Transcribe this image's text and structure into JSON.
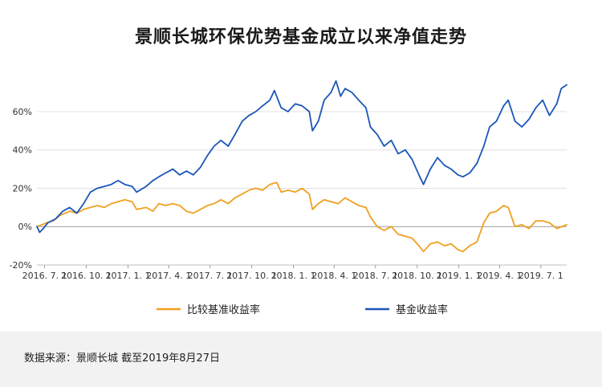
{
  "title": "景顺长城环保优势基金成立以来净值走势",
  "source": "数据来源：景顺长城  截至2019年8月27日",
  "colors": {
    "fund": "#1a56b8",
    "benchmark": "#f0a020",
    "grid": "#e0e0e0",
    "zero": "#9a9a9a"
  },
  "chart_data": {
    "type": "line",
    "title": "景顺长城环保优势基金成立以来净值走势",
    "xlabel": "",
    "ylabel": "",
    "x_range": [
      "2016-06-14",
      "2019-08-27"
    ],
    "ylim": [
      -20,
      78
    ],
    "y_ticks": [
      {
        "value": 60,
        "label": "60%"
      },
      {
        "value": 40,
        "label": "40%"
      },
      {
        "value": 20,
        "label": "20%"
      },
      {
        "value": 0,
        "label": "0%"
      },
      {
        "value": -20,
        "label": "-20%"
      }
    ],
    "x_ticks": [
      {
        "date": "2016-07-01",
        "label": "2016. 7. 1"
      },
      {
        "date": "2016-10-01",
        "label": "2016. 10. 1"
      },
      {
        "date": "2017-01-01",
        "label": "2017. 1. 1"
      },
      {
        "date": "2017-04-01",
        "label": "2017. 4. 1"
      },
      {
        "date": "2017-07-01",
        "label": "2017. 7. 1"
      },
      {
        "date": "2017-10-01",
        "label": "2017. 10. 1"
      },
      {
        "date": "2018-01-01",
        "label": "2018. 1. 1"
      },
      {
        "date": "2018-04-01",
        "label": "2018. 4. 1"
      },
      {
        "date": "2018-07-01",
        "label": "2018. 7. 1"
      },
      {
        "date": "2018-10-01",
        "label": "2018. 10. 1"
      },
      {
        "date": "2019-01-01",
        "label": "2019. 1. 1"
      },
      {
        "date": "2019-04-01",
        "label": "2019. 4. 1"
      },
      {
        "date": "2019-07-01",
        "label": "2019. 7. 1"
      }
    ],
    "grid": true,
    "legend_position": "bottom",
    "series": [
      {
        "name": "比较基准收益率",
        "color": "#f0a020",
        "points": [
          [
            "2016-06-14",
            0
          ],
          [
            "2016-06-25",
            1
          ],
          [
            "2016-07-05",
            2
          ],
          [
            "2016-07-20",
            3
          ],
          [
            "2016-08-05",
            6
          ],
          [
            "2016-08-25",
            8
          ],
          [
            "2016-09-10",
            7
          ],
          [
            "2016-09-25",
            9
          ],
          [
            "2016-10-10",
            10
          ],
          [
            "2016-10-25",
            11
          ],
          [
            "2016-11-10",
            10
          ],
          [
            "2016-11-25",
            12
          ],
          [
            "2016-12-10",
            13
          ],
          [
            "2016-12-25",
            14
          ],
          [
            "2017-01-10",
            13
          ],
          [
            "2017-01-20",
            9
          ],
          [
            "2017-02-10",
            10
          ],
          [
            "2017-02-25",
            8
          ],
          [
            "2017-03-10",
            12
          ],
          [
            "2017-03-25",
            11
          ],
          [
            "2017-04-10",
            12
          ],
          [
            "2017-04-25",
            11
          ],
          [
            "2017-05-10",
            8
          ],
          [
            "2017-05-25",
            7
          ],
          [
            "2017-06-10",
            9
          ],
          [
            "2017-06-25",
            11
          ],
          [
            "2017-07-10",
            12
          ],
          [
            "2017-07-25",
            14
          ],
          [
            "2017-08-10",
            12
          ],
          [
            "2017-08-25",
            15
          ],
          [
            "2017-09-10",
            17
          ],
          [
            "2017-09-25",
            19
          ],
          [
            "2017-10-10",
            20
          ],
          [
            "2017-10-25",
            19
          ],
          [
            "2017-11-10",
            22
          ],
          [
            "2017-11-25",
            23
          ],
          [
            "2017-12-05",
            18
          ],
          [
            "2017-12-20",
            19
          ],
          [
            "2018-01-05",
            18
          ],
          [
            "2018-01-20",
            20
          ],
          [
            "2018-02-05",
            17
          ],
          [
            "2018-02-12",
            9
          ],
          [
            "2018-02-25",
            12
          ],
          [
            "2018-03-10",
            14
          ],
          [
            "2018-03-25",
            13
          ],
          [
            "2018-04-10",
            12
          ],
          [
            "2018-04-25",
            15
          ],
          [
            "2018-05-10",
            13
          ],
          [
            "2018-05-25",
            11
          ],
          [
            "2018-06-10",
            10
          ],
          [
            "2018-06-20",
            5
          ],
          [
            "2018-07-05",
            0
          ],
          [
            "2018-07-20",
            -2
          ],
          [
            "2018-08-05",
            0
          ],
          [
            "2018-08-20",
            -4
          ],
          [
            "2018-09-05",
            -5
          ],
          [
            "2018-09-20",
            -6
          ],
          [
            "2018-10-05",
            -10
          ],
          [
            "2018-10-15",
            -13
          ],
          [
            "2018-10-30",
            -9
          ],
          [
            "2018-11-15",
            -8
          ],
          [
            "2018-11-30",
            -10
          ],
          [
            "2018-12-15",
            -9
          ],
          [
            "2018-12-30",
            -12
          ],
          [
            "2019-01-10",
            -13
          ],
          [
            "2019-01-25",
            -10
          ],
          [
            "2019-02-10",
            -8
          ],
          [
            "2019-02-25",
            2
          ],
          [
            "2019-03-10",
            7
          ],
          [
            "2019-03-25",
            8
          ],
          [
            "2019-04-10",
            11
          ],
          [
            "2019-04-20",
            10
          ],
          [
            "2019-05-05",
            0
          ],
          [
            "2019-05-20",
            1
          ],
          [
            "2019-06-05",
            -1
          ],
          [
            "2019-06-20",
            3
          ],
          [
            "2019-07-05",
            3
          ],
          [
            "2019-07-20",
            2
          ],
          [
            "2019-08-05",
            -1
          ],
          [
            "2019-08-27",
            1
          ]
        ]
      },
      {
        "name": "基金收益率",
        "color": "#1a56b8",
        "points": [
          [
            "2016-06-14",
            0
          ],
          [
            "2016-06-20",
            -3
          ],
          [
            "2016-06-28",
            -1
          ],
          [
            "2016-07-08",
            2
          ],
          [
            "2016-07-25",
            4
          ],
          [
            "2016-08-10",
            8
          ],
          [
            "2016-08-25",
            10
          ],
          [
            "2016-09-10",
            7
          ],
          [
            "2016-09-25",
            12
          ],
          [
            "2016-10-10",
            18
          ],
          [
            "2016-10-25",
            20
          ],
          [
            "2016-11-10",
            21
          ],
          [
            "2016-11-25",
            22
          ],
          [
            "2016-12-10",
            24
          ],
          [
            "2016-12-25",
            22
          ],
          [
            "2017-01-10",
            21
          ],
          [
            "2017-01-20",
            18
          ],
          [
            "2017-02-10",
            21
          ],
          [
            "2017-02-25",
            24
          ],
          [
            "2017-03-10",
            26
          ],
          [
            "2017-03-25",
            28
          ],
          [
            "2017-04-10",
            30
          ],
          [
            "2017-04-25",
            27
          ],
          [
            "2017-05-10",
            29
          ],
          [
            "2017-05-25",
            27
          ],
          [
            "2017-06-10",
            31
          ],
          [
            "2017-06-25",
            37
          ],
          [
            "2017-07-10",
            42
          ],
          [
            "2017-07-25",
            45
          ],
          [
            "2017-08-10",
            42
          ],
          [
            "2017-08-25",
            48
          ],
          [
            "2017-09-10",
            55
          ],
          [
            "2017-09-25",
            58
          ],
          [
            "2017-10-10",
            60
          ],
          [
            "2017-10-25",
            63
          ],
          [
            "2017-11-10",
            66
          ],
          [
            "2017-11-20",
            71
          ],
          [
            "2017-12-05",
            62
          ],
          [
            "2017-12-20",
            60
          ],
          [
            "2018-01-05",
            64
          ],
          [
            "2018-01-20",
            63
          ],
          [
            "2018-02-05",
            60
          ],
          [
            "2018-02-12",
            50
          ],
          [
            "2018-02-25",
            55
          ],
          [
            "2018-03-10",
            66
          ],
          [
            "2018-03-25",
            70
          ],
          [
            "2018-04-05",
            76
          ],
          [
            "2018-04-15",
            68
          ],
          [
            "2018-04-25",
            72
          ],
          [
            "2018-05-10",
            70
          ],
          [
            "2018-05-25",
            66
          ],
          [
            "2018-06-10",
            62
          ],
          [
            "2018-06-20",
            52
          ],
          [
            "2018-07-05",
            48
          ],
          [
            "2018-07-20",
            42
          ],
          [
            "2018-08-05",
            45
          ],
          [
            "2018-08-20",
            38
          ],
          [
            "2018-09-05",
            40
          ],
          [
            "2018-09-20",
            35
          ],
          [
            "2018-10-05",
            27
          ],
          [
            "2018-10-15",
            22
          ],
          [
            "2018-10-30",
            30
          ],
          [
            "2018-11-15",
            36
          ],
          [
            "2018-11-30",
            32
          ],
          [
            "2018-12-15",
            30
          ],
          [
            "2018-12-30",
            27
          ],
          [
            "2019-01-10",
            26
          ],
          [
            "2019-01-25",
            28
          ],
          [
            "2019-02-10",
            33
          ],
          [
            "2019-02-25",
            42
          ],
          [
            "2019-03-10",
            52
          ],
          [
            "2019-03-25",
            55
          ],
          [
            "2019-04-10",
            63
          ],
          [
            "2019-04-20",
            66
          ],
          [
            "2019-05-05",
            55
          ],
          [
            "2019-05-20",
            52
          ],
          [
            "2019-06-05",
            56
          ],
          [
            "2019-06-20",
            62
          ],
          [
            "2019-07-05",
            66
          ],
          [
            "2019-07-20",
            58
          ],
          [
            "2019-08-05",
            64
          ],
          [
            "2019-08-15",
            72
          ],
          [
            "2019-08-27",
            74
          ]
        ]
      }
    ]
  }
}
